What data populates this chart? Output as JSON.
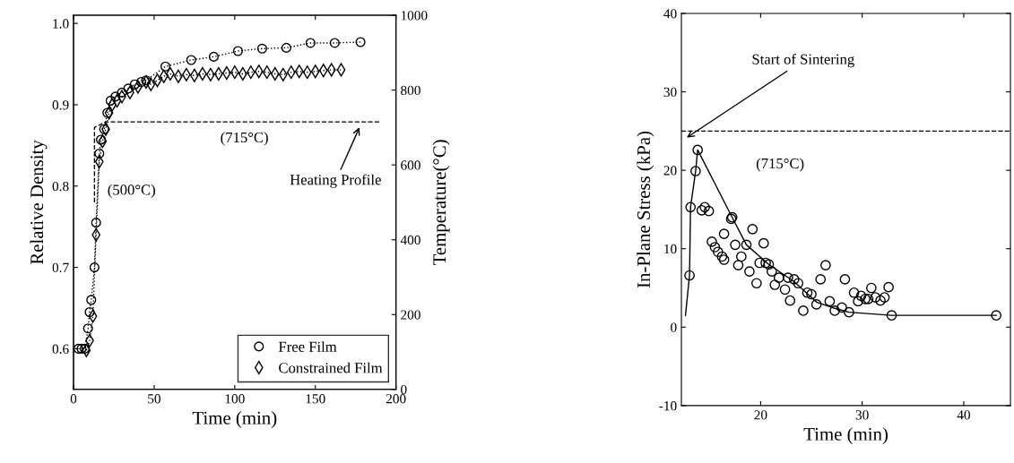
{
  "chart_data": [
    {
      "type": "line",
      "xlabel": "Time (min)",
      "ylabel": "Relative Density",
      "y2label": "Temperature(°C)",
      "xlim": [
        0,
        200
      ],
      "xticks": [
        0,
        50,
        100,
        150,
        200
      ],
      "ylim": [
        0.55,
        1.01
      ],
      "yticks": [
        0.6,
        0.7,
        0.8,
        0.9,
        {
          "value": 1.0,
          "label": "1.0"
        }
      ],
      "y2lim": [
        0,
        1000
      ],
      "y2ticks": [
        0,
        200,
        400,
        600,
        800,
        1000
      ],
      "legend": "bottom right",
      "grid": false,
      "series": [
        {
          "name": "Free Film",
          "color": "#000000",
          "marker": "circle",
          "line_style": "dotted",
          "x": [
            3,
            5,
            7,
            9,
            10,
            11,
            13,
            14,
            16,
            17,
            19,
            21,
            23,
            26,
            30,
            34,
            38,
            42,
            45,
            57,
            73,
            87,
            102,
            117,
            132,
            147,
            162,
            178
          ],
          "values": [
            0.6,
            0.6,
            0.6,
            0.625,
            0.645,
            0.66,
            0.7,
            0.755,
            0.84,
            0.857,
            0.87,
            0.89,
            0.905,
            0.91,
            0.915,
            0.92,
            0.925,
            0.928,
            0.93,
            0.947,
            0.955,
            0.959,
            0.966,
            0.969,
            0.97,
            0.976,
            0.976,
            0.977
          ]
        },
        {
          "name": "Constrained Film",
          "color": "#000000",
          "marker": "diamond",
          "line_style": "dotted",
          "x": [
            8,
            10,
            12,
            14,
            16,
            18,
            20,
            22,
            24,
            27,
            30,
            35,
            40,
            45,
            48,
            52,
            56,
            60,
            65,
            70,
            75,
            80,
            85,
            90,
            95,
            100,
            105,
            110,
            115,
            120,
            125,
            130,
            135,
            140,
            145,
            150,
            155,
            160,
            166
          ],
          "values": [
            0.598,
            0.61,
            0.64,
            0.74,
            0.83,
            0.855,
            0.87,
            0.89,
            0.9,
            0.905,
            0.91,
            0.915,
            0.922,
            0.928,
            0.925,
            0.93,
            0.935,
            0.938,
            0.935,
            0.937,
            0.936,
            0.938,
            0.937,
            0.938,
            0.939,
            0.94,
            0.938,
            0.94,
            0.941,
            0.94,
            0.938,
            0.937,
            0.94,
            0.941,
            0.94,
            0.941,
            0.942,
            0.943,
            0.943
          ]
        },
        {
          "color": "#000000",
          "axis": "y2",
          "marker": "none",
          "line_style": "dashed",
          "x": [
            13,
            13,
            20,
            190
          ],
          "values": [
            500,
            700,
            715,
            715
          ]
        }
      ],
      "annotations": [
        "(500°C)",
        "(715°C)",
        {
          "text": "Heating Profile",
          "x": 178,
          "y": 0.875
        }
      ]
    },
    {
      "type": "scatter",
      "xlabel": "Time (min)",
      "ylabel": "In-Plane Stress (kPa)",
      "xlim": [
        12.2,
        44.6
      ],
      "xticks": [
        20,
        30,
        40
      ],
      "ylim": [
        -10,
        40
      ],
      "yticks": [
        -10,
        0,
        10,
        20,
        30,
        40
      ],
      "grid": false,
      "ref_lines": [
        {
          "axis": "y",
          "value": 25,
          "label": "(715°C)",
          "line_style": "dashed",
          "color": "#000000"
        }
      ],
      "series": [
        {
          "type": "line",
          "color": "#000000",
          "marker": "none",
          "line_style": "solid",
          "x": [
            12.6,
            13.0,
            13.1,
            13.6,
            13.8,
            17.2,
            18.6,
            20.8,
            23.3,
            25.5,
            27.3,
            28.7,
            32.9,
            43.2
          ],
          "values": [
            1.5,
            6.6,
            15.3,
            19.9,
            22.6,
            14.0,
            10.5,
            8.0,
            5.8,
            3.2,
            2.4,
            1.9,
            1.5,
            1.5
          ]
        },
        {
          "type": "scatter",
          "color": "#000000",
          "marker": "circle",
          "x": [
            13.0,
            13.1,
            13.6,
            13.8,
            14.2,
            14.5,
            14.9,
            15.2,
            15.5,
            15.8,
            16.2,
            16.4,
            16.4,
            17.1,
            17.2,
            17.5,
            18.1,
            17.8,
            18.6,
            18.9,
            19.2,
            19.6,
            19.9,
            20.3,
            20.5,
            20.8,
            21.1,
            21.4,
            21.8,
            22.4,
            22.7,
            22.9,
            23.3,
            23.7,
            24.2,
            24.6,
            25.0,
            25.5,
            25.9,
            26.4,
            26.8,
            27.3,
            28.0,
            28.3,
            28.7,
            29.2,
            29.6,
            29.9,
            30.3,
            30.6,
            30.9,
            31.3,
            31.8,
            32.2,
            32.6,
            32.9,
            43.2
          ],
          "values": [
            6.6,
            15.3,
            19.9,
            22.6,
            14.9,
            15.3,
            14.8,
            10.9,
            10.2,
            9.6,
            9.0,
            8.6,
            11.9,
            13.8,
            14.0,
            10.5,
            9.0,
            7.9,
            10.5,
            7.1,
            12.5,
            5.6,
            8.2,
            10.7,
            8.2,
            8.0,
            7.1,
            5.4,
            6.3,
            4.8,
            6.3,
            3.4,
            6.1,
            5.6,
            2.1,
            4.4,
            4.2,
            2.9,
            6.1,
            7.9,
            3.3,
            2.1,
            2.5,
            6.1,
            1.9,
            4.4,
            3.3,
            4.0,
            3.6,
            3.6,
            5.0,
            3.8,
            3.4,
            3.8,
            5.1,
            1.5,
            1.5
          ]
        }
      ],
      "annotations": [
        "Start of Sintering"
      ]
    }
  ]
}
